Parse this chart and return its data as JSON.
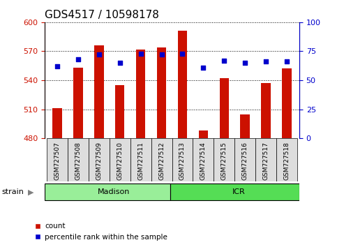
{
  "title": "GDS4517 / 10598178",
  "samples": [
    "GSM727507",
    "GSM727508",
    "GSM727509",
    "GSM727510",
    "GSM727511",
    "GSM727512",
    "GSM727513",
    "GSM727514",
    "GSM727515",
    "GSM727516",
    "GSM727517",
    "GSM727518"
  ],
  "counts": [
    511,
    553,
    576,
    535,
    572,
    574,
    591,
    488,
    542,
    505,
    537,
    552
  ],
  "percentiles": [
    62,
    68,
    72,
    65,
    73,
    72,
    73,
    61,
    67,
    65,
    66,
    66
  ],
  "ylim_left": [
    480,
    600
  ],
  "ylim_right": [
    0,
    100
  ],
  "yticks_left": [
    480,
    510,
    540,
    570,
    600
  ],
  "yticks_right": [
    0,
    25,
    50,
    75,
    100
  ],
  "bar_color": "#cc1100",
  "dot_color": "#0000cc",
  "title_fontsize": 11,
  "tick_fontsize": 8,
  "label_fontsize": 8,
  "madison_color": "#99ee99",
  "icr_color": "#55dd55",
  "strain_label": "strain",
  "legend_count": "count",
  "legend_pct": "percentile rank within the sample",
  "bg_xtick": "#dddddd"
}
